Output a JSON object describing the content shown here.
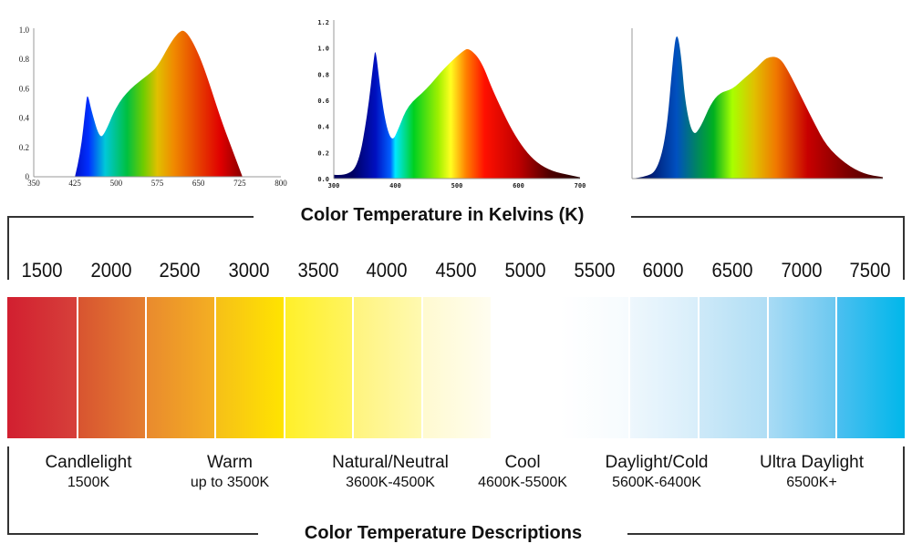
{
  "chart_data": [
    {
      "type": "area",
      "title": "",
      "xlabel": "",
      "ylabel": "",
      "xlim": [
        350,
        800
      ],
      "ylim": [
        0,
        1.0
      ],
      "xticks": [
        "350",
        "425",
        "500",
        "575",
        "650",
        "725",
        "800"
      ],
      "yticks": [
        "0",
        "0.2",
        "0.4",
        "0.6",
        "0.8",
        "1.0"
      ],
      "x": [
        425,
        435,
        445,
        448,
        455,
        470,
        480,
        500,
        525,
        560,
        575,
        600,
        615,
        625,
        640,
        660,
        690,
        710,
        730
      ],
      "values": [
        0,
        0.15,
        0.5,
        0.57,
        0.45,
        0.26,
        0.3,
        0.48,
        0.6,
        0.7,
        0.75,
        0.92,
        0.99,
        1.0,
        0.92,
        0.75,
        0.4,
        0.2,
        0
      ]
    },
    {
      "type": "area",
      "title": "",
      "xlabel": "",
      "ylabel": "",
      "xlim": [
        300,
        700
      ],
      "ylim": [
        0,
        1.2
      ],
      "xticks": [
        "300",
        "400",
        "500",
        "600",
        "700"
      ],
      "yticks": [
        "0.0",
        "0.2",
        "0.4",
        "0.6",
        "0.8",
        "1.0",
        "1.2"
      ],
      "x": [
        300,
        320,
        340,
        355,
        365,
        368,
        375,
        385,
        395,
        405,
        420,
        450,
        480,
        510,
        520,
        540,
        560,
        600,
        640,
        700
      ],
      "values": [
        0.03,
        0.02,
        0.1,
        0.5,
        0.92,
        1.0,
        0.7,
        0.4,
        0.28,
        0.38,
        0.56,
        0.68,
        0.85,
        0.98,
        1.0,
        0.9,
        0.65,
        0.27,
        0.07,
        0.01
      ]
    },
    {
      "type": "area",
      "title": "",
      "xlabel": "",
      "ylabel": "",
      "xlim": [
        380,
        780
      ],
      "ylim": [
        0,
        1.0
      ],
      "xticks": [],
      "yticks": [],
      "x": [
        380,
        400,
        420,
        435,
        445,
        451,
        458,
        465,
        477,
        490,
        505,
        520,
        540,
        560,
        580,
        595,
        615,
        630,
        650,
        670,
        690,
        720,
        750,
        780
      ],
      "values": [
        0,
        0.01,
        0.05,
        0.3,
        0.8,
        1.0,
        0.85,
        0.5,
        0.28,
        0.35,
        0.5,
        0.58,
        0.6,
        0.68,
        0.75,
        0.82,
        0.82,
        0.72,
        0.55,
        0.38,
        0.22,
        0.1,
        0.03,
        0.01
      ]
    },
    {
      "type": "bar",
      "title": "Color Temperature in Kelvins (K)",
      "categories": [
        "1500",
        "2000",
        "2500",
        "3000",
        "3500",
        "4000",
        "4500",
        "5000",
        "5500",
        "6000",
        "6500",
        "7000",
        "7500"
      ],
      "colors": [
        [
          "#d21f30",
          "#d6403a"
        ],
        [
          "#d85430",
          "#e47e30"
        ],
        [
          "#e98a2e",
          "#f4af22"
        ],
        [
          "#f6c018",
          "#ffe400"
        ],
        [
          "#fff02a",
          "#fff460"
        ],
        [
          "#fff47e",
          "#fff9b0"
        ],
        [
          "#fffad0",
          "#fffdf0"
        ],
        [
          "#ffffff",
          "#ffffff"
        ],
        [
          "#ffffff",
          "#f6fbfe"
        ],
        [
          "#eef7fd",
          "#d8eefa"
        ],
        [
          "#cde9f8",
          "#b0def5"
        ],
        [
          "#a8dbf5",
          "#6cc8f0"
        ],
        [
          "#4cbff0",
          "#00b7ea"
        ]
      ]
    }
  ],
  "kelvin_title": "Color Temperature in Kelvins (K)",
  "descriptions_title": "Color Temperature Descriptions",
  "descriptions": [
    {
      "name": "Candlelight",
      "range": "1500K"
    },
    {
      "name": "Warm",
      "range": "up to 3500K"
    },
    {
      "name": "Natural/Neutral",
      "range": "3600K-4500K"
    },
    {
      "name": "Cool",
      "range": "4600K-5500K"
    },
    {
      "name": "Daylight/Cold",
      "range": "5600K-6400K"
    },
    {
      "name": "Ultra Daylight",
      "range": "6500K+"
    }
  ]
}
